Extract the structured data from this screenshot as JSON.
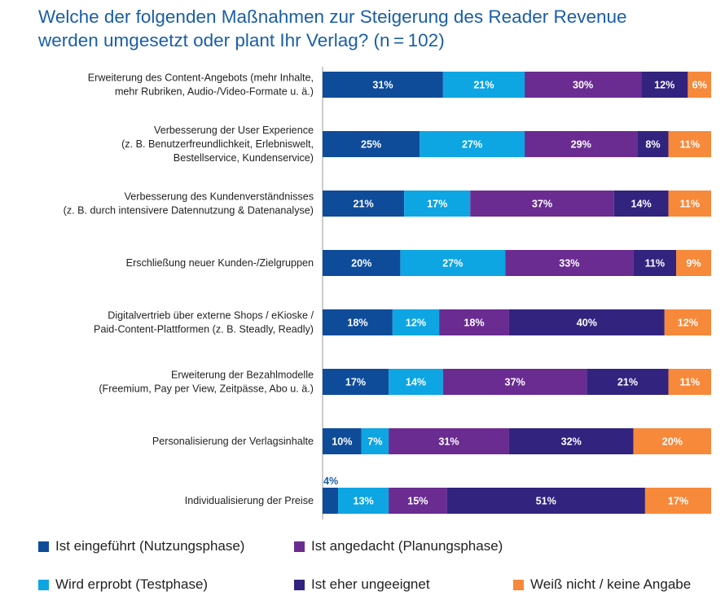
{
  "title_lines": [
    "Welche der folgenden Maßnahmen zur Steigerung des Reader Revenue",
    "werden umgesetzt oder plant Ihr Verlag? (n = 102)"
  ],
  "chart_data": {
    "type": "bar",
    "orientation": "horizontal",
    "stacked": true,
    "unit": "%",
    "xlim": [
      0,
      100
    ],
    "grid": false,
    "legend_position": "bottom",
    "categories": [
      [
        "Erweiterung des Content-Angebots (mehr Inhalte,",
        "mehr Rubriken, Audio-/Video-Formate u. ä.)"
      ],
      [
        "Verbesserung der User Experience",
        "(z. B. Benutzerfreundlichkeit, Erlebniswelt,",
        "Bestellservice, Kundenservice)"
      ],
      [
        "Verbesserung des Kundenverständnisses",
        "(z. B. durch intensivere Datennutzung & Datenanalyse)"
      ],
      [
        "Erschließung neuer Kunden-/Zielgruppen"
      ],
      [
        "Digitalvertrieb über externe Shops / eKioske /",
        "Paid-Content-Plattformen (z. B. Steadly, Readly)"
      ],
      [
        "Erweiterung der Bezahlmodelle",
        "(Freemium, Pay per View, Zeitpässe, Abo u. ä.)"
      ],
      [
        "Personalisierung der Verlagsinhalte"
      ],
      [
        "Individualisierung der Preise"
      ]
    ],
    "series": [
      {
        "name": "Ist eingeführt (Nutzungsphase)",
        "color": "#0e4c9a",
        "values": [
          31,
          25,
          21,
          20,
          18,
          17,
          10,
          4
        ]
      },
      {
        "name": "Wird erprobt (Testphase)",
        "color": "#0ea5e3",
        "values": [
          21,
          27,
          17,
          27,
          12,
          14,
          7,
          13
        ]
      },
      {
        "name": "Ist angedacht (Planungsphase)",
        "color": "#6a2c91",
        "values": [
          30,
          29,
          37,
          33,
          18,
          37,
          31,
          15
        ]
      },
      {
        "name": "Ist eher ungeeignet",
        "color": "#32237f",
        "values": [
          12,
          8,
          14,
          11,
          40,
          21,
          32,
          51
        ]
      },
      {
        "name": "Weiß nicht / keine Angabe",
        "color": "#f7893a",
        "values": [
          6,
          11,
          11,
          9,
          12,
          11,
          20,
          17
        ]
      }
    ],
    "legend_order": [
      0,
      2,
      1,
      3,
      4
    ]
  }
}
